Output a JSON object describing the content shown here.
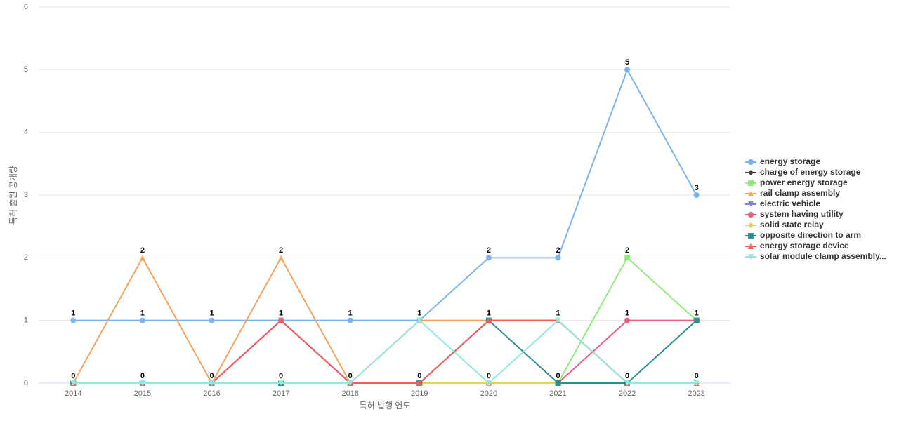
{
  "chart_data": {
    "type": "line",
    "x_label": "특허 발행 연도",
    "y_label": "특허 출원 공개량",
    "categories": [
      "2014",
      "2015",
      "2016",
      "2017",
      "2018",
      "2019",
      "2020",
      "2021",
      "2022",
      "2023"
    ],
    "ylim": [
      0,
      6
    ],
    "yticks": [
      0,
      1,
      2,
      3,
      4,
      5,
      6
    ],
    "grid": true,
    "legend": "right",
    "series": [
      {
        "name": "energy storage",
        "color": "#7cb5ec",
        "values": [
          1,
          1,
          1,
          1,
          1,
          1,
          2,
          2,
          5,
          3
        ]
      },
      {
        "name": "charge of energy storage",
        "color": "#434348",
        "values": [
          0,
          0,
          0,
          0,
          0,
          0,
          0,
          0,
          0,
          0
        ]
      },
      {
        "name": "power energy storage",
        "color": "#90ed7d",
        "values": [
          0,
          0,
          0,
          0,
          0,
          0,
          0,
          0,
          2,
          1
        ]
      },
      {
        "name": "rail clamp assembly",
        "color": "#f7a35c",
        "values": [
          0,
          2,
          0,
          2,
          0,
          1,
          1,
          1,
          0,
          0
        ]
      },
      {
        "name": "electric vehicle",
        "color": "#8085e9",
        "values": [
          0,
          0,
          0,
          1,
          0,
          0,
          0,
          0,
          0,
          0
        ]
      },
      {
        "name": "system having utility",
        "color": "#f15c80",
        "values": [
          0,
          0,
          0,
          1,
          0,
          0,
          0,
          0,
          1,
          1
        ]
      },
      {
        "name": "solid state relay",
        "color": "#e4d354",
        "values": [
          0,
          0,
          0,
          0,
          0,
          0,
          0,
          0,
          0,
          0
        ]
      },
      {
        "name": "opposite direction to arm",
        "color": "#2b908f",
        "values": [
          0,
          0,
          0,
          0,
          0,
          0,
          1,
          0,
          0,
          1
        ]
      },
      {
        "name": "energy storage device",
        "color": "#f45b5b",
        "values": [
          0,
          0,
          0,
          1,
          0,
          0,
          1,
          1,
          0,
          0
        ]
      },
      {
        "name": "solar module clamp assembly...",
        "color": "#91e8e1",
        "values": [
          0,
          0,
          0,
          0,
          0,
          1,
          0,
          1,
          0,
          0
        ]
      }
    ]
  }
}
